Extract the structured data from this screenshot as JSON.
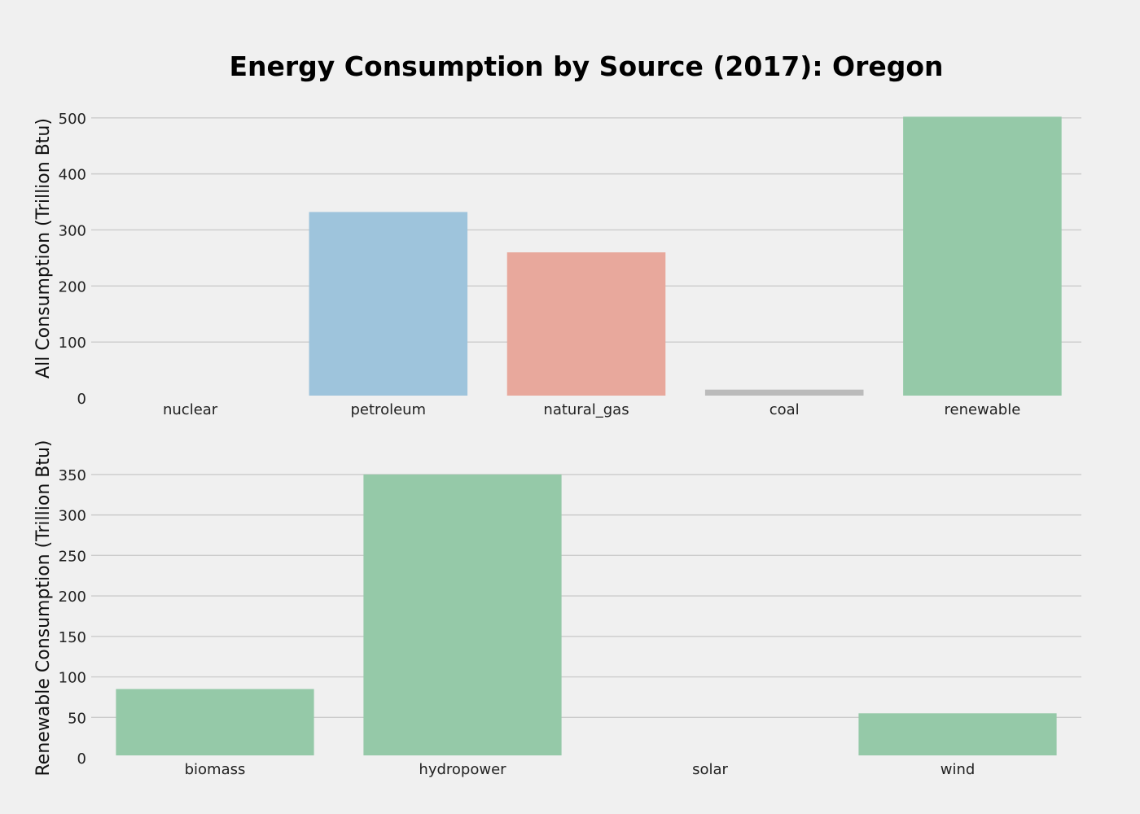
{
  "chart_data": [
    {
      "type": "bar",
      "title": "Energy Consumption by Source (2017): Oregon",
      "ylabel": "All Consumption (Trillion Btu)",
      "categories": [
        "nuclear",
        "petroleum",
        "natural_gas",
        "coal",
        "renewable"
      ],
      "values": [
        0,
        332,
        260,
        15,
        502
      ],
      "colors": [
        "#1f77b4",
        "#348abd",
        "#e24a33",
        "#8c8c8c",
        "#2ca25f"
      ],
      "bar_colors": [
        "#9ec4dc",
        "#9ec4dc",
        "#e8a89c",
        "#bbbbbb",
        "#95c9a8"
      ],
      "ylim": [
        0,
        520
      ],
      "yticks": [
        0,
        100,
        200,
        300,
        400,
        500
      ],
      "grid": true
    },
    {
      "type": "bar",
      "title": "",
      "ylabel": "Renewable Consumption (Trillion Btu)",
      "categories": [
        "biomass",
        "hydropower",
        "solar",
        "wind"
      ],
      "values": [
        85,
        350,
        2,
        55
      ],
      "bar_colors": [
        "#95c9a8",
        "#95c9a8",
        "#95c9a8",
        "#95c9a8"
      ],
      "ylim": [
        0,
        370
      ],
      "yticks": [
        0,
        50,
        100,
        150,
        200,
        250,
        300,
        350
      ],
      "grid": true
    }
  ]
}
